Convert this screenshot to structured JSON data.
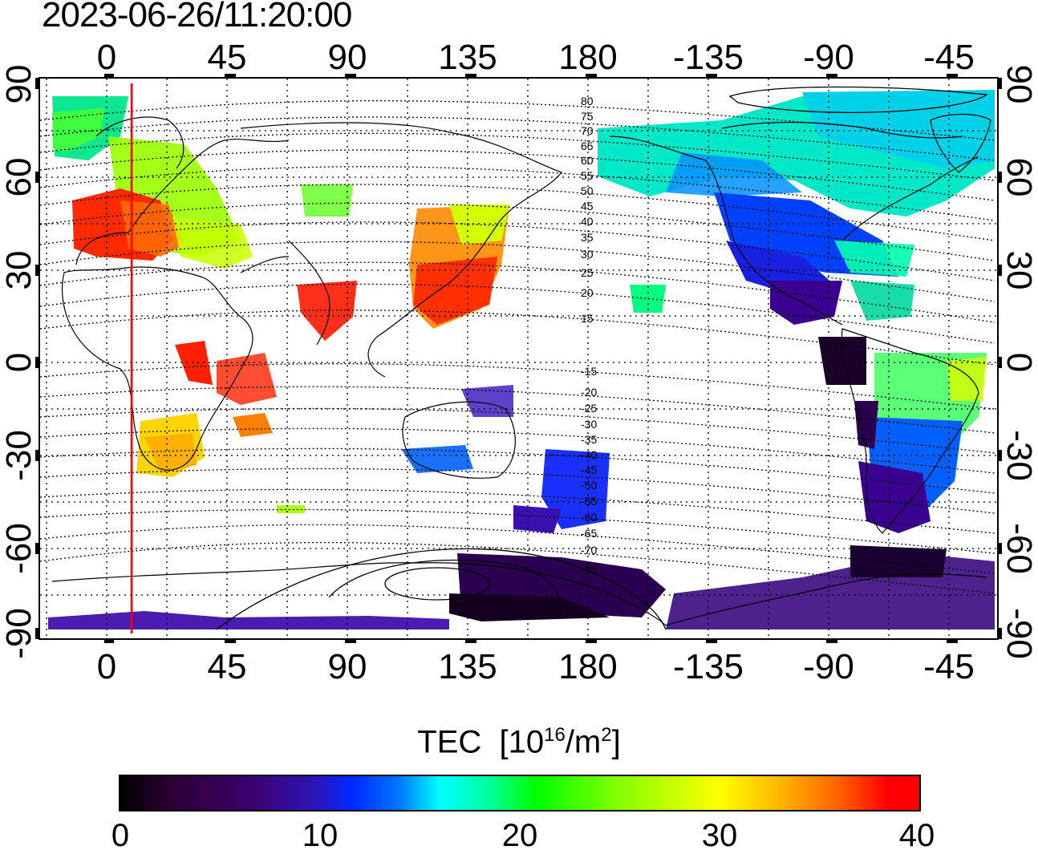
{
  "header": {
    "timestamp": "2023-06-26/11:20:00"
  },
  "map": {
    "projection": "equirectangular, central meridian 200",
    "lon_ticks": [
      "0",
      "45",
      "90",
      "135",
      "180",
      "-135",
      "-90",
      "-45"
    ],
    "lat_ticks": [
      "90",
      "60",
      "30",
      "0",
      "-30",
      "-60",
      "-90"
    ],
    "subsolar_marker_lon_label": "red vertical line near 10 E",
    "magnetic_latitude_labels": [
      "80",
      "75",
      "70",
      "65",
      "60",
      "55",
      "50",
      "45",
      "40",
      "35",
      "30",
      "25",
      "20",
      "15",
      "-15",
      "-20",
      "-25",
      "-30",
      "-35",
      "-40",
      "-45",
      "-50",
      "-55",
      "-60",
      "-65",
      "-70",
      "-75"
    ],
    "grid": true
  },
  "colorbar": {
    "title": "TEC",
    "unit_base": "[10",
    "unit_exp": "16",
    "unit_mid": "/m",
    "unit_exp2": "2",
    "unit_end": "]",
    "ticks": [
      "0",
      "10",
      "20",
      "30",
      "40"
    ],
    "range": [
      0,
      40
    ],
    "colors": [
      "#000000",
      "#3c006b",
      "#0028ff",
      "#00ffff",
      "#00ff00",
      "#ffff00",
      "#ff0000"
    ]
  }
}
